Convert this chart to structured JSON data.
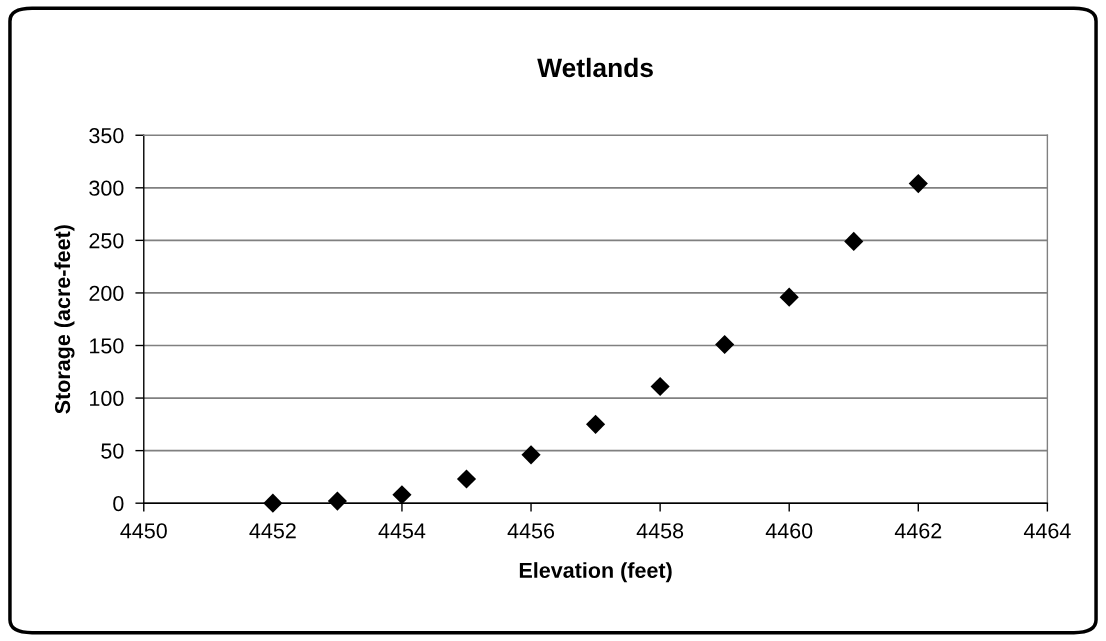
{
  "chart_data": {
    "type": "scatter",
    "title": "Wetlands",
    "xlabel": "Elevation (feet)",
    "ylabel": "Storage (acre-feet)",
    "x": [
      4452,
      4453,
      4454,
      4455,
      4456,
      4457,
      4458,
      4459,
      4460,
      4461,
      4462
    ],
    "series": [
      {
        "color": "#000000",
        "values": [
          0,
          2,
          8,
          23,
          46,
          75,
          111,
          151,
          196,
          249,
          304
        ]
      }
    ],
    "xlim": [
      4450,
      4464
    ],
    "xticks": [
      4450,
      4452,
      4454,
      4456,
      4458,
      4460,
      4462,
      4464
    ],
    "ylim": [
      0,
      350
    ],
    "yticks": [
      0,
      50,
      100,
      150,
      200,
      250,
      300,
      350
    ],
    "grid": "y",
    "marker": "diamond"
  }
}
